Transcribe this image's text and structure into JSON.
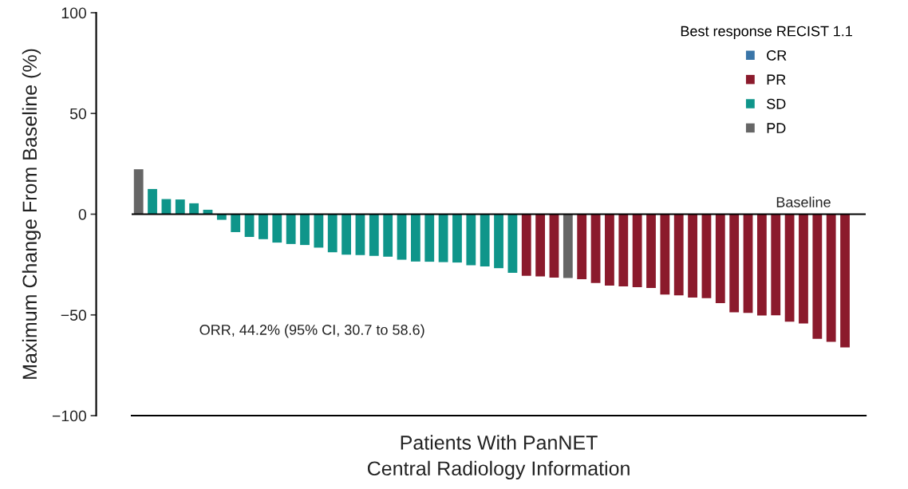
{
  "chart_data": {
    "type": "bar",
    "categories": [
      null,
      null,
      null,
      null,
      null,
      null,
      null,
      null,
      null,
      null,
      null,
      null,
      null,
      null,
      null,
      null,
      null,
      null,
      null,
      null,
      null,
      null,
      null,
      null,
      null,
      null,
      null,
      null,
      null,
      null,
      null,
      null,
      null,
      null,
      null,
      null,
      null,
      null,
      null,
      null,
      null,
      null,
      null,
      null,
      null,
      null,
      null,
      null,
      null,
      null,
      null,
      null,
      null
    ],
    "series": [
      {
        "name": "CR",
        "color": "#3a75a8",
        "values": [
          null,
          null,
          null,
          null,
          null,
          null,
          null,
          null,
          null,
          null,
          null,
          null,
          null,
          null,
          null,
          null,
          null,
          null,
          null,
          null,
          null,
          null,
          null,
          null,
          null,
          null,
          null,
          null,
          null,
          null,
          null,
          null,
          null,
          null,
          null,
          null,
          null,
          null,
          null,
          null,
          null,
          null,
          null,
          null,
          null,
          null,
          null,
          null,
          null,
          null,
          null,
          null,
          null
        ]
      },
      {
        "name": "PR",
        "color": "#8b1a2c",
        "values": [
          null,
          null,
          null,
          null,
          null,
          null,
          null,
          null,
          null,
          null,
          null,
          null,
          null,
          null,
          null,
          null,
          null,
          null,
          null,
          null,
          null,
          null,
          null,
          null,
          null,
          null,
          null,
          null,
          -30.6,
          -30.9,
          -31.5,
          null,
          -32.3,
          -34.2,
          -35.4,
          -35.8,
          -36.2,
          -36.6,
          -39.9,
          -40.3,
          -41.4,
          -41.7,
          -44.2,
          -48.7,
          -49.0,
          -50.3,
          -50.2,
          -53.4,
          -54.2,
          -61.9,
          -63.4,
          -66.1,
          null
        ]
      },
      {
        "name": "SD",
        "color": "#0f958a",
        "values": [
          null,
          12.5,
          7.5,
          7.3,
          5.4,
          2.2,
          -2.8,
          -8.9,
          -11.3,
          -12.4,
          -14.1,
          -14.8,
          -15.3,
          -16.6,
          -18.9,
          -20.1,
          -20.3,
          -20.7,
          -21.1,
          -22.6,
          -23.5,
          -23.6,
          -23.8,
          -24.0,
          -25.3,
          -25.9,
          -26.8,
          -29.1,
          null,
          null,
          null,
          null,
          null,
          null,
          null,
          null,
          null,
          null,
          null,
          null,
          null,
          null,
          null,
          null,
          null,
          null,
          null,
          null,
          null,
          null,
          null,
          null,
          null
        ]
      },
      {
        "name": "PD",
        "color": "#666666",
        "values": [
          22.3,
          null,
          null,
          null,
          null,
          null,
          null,
          null,
          null,
          null,
          null,
          null,
          null,
          null,
          null,
          null,
          null,
          null,
          null,
          null,
          null,
          null,
          null,
          null,
          null,
          null,
          null,
          null,
          null,
          null,
          null,
          -31.7,
          null,
          null,
          null,
          null,
          null,
          null,
          null,
          null,
          null,
          null,
          null,
          null,
          null,
          null,
          null,
          null,
          null,
          null,
          null,
          null,
          null
        ]
      }
    ],
    "ylabel": "Maximum Change From Baseline (%)",
    "xlabel": "Patients With PanNET\nCentral Radiology Information",
    "legend_title": "Best response RECIST 1.1",
    "legend": "top right",
    "ylim": [
      -100,
      100
    ],
    "yticks": [
      -100,
      -50,
      0,
      50,
      100
    ],
    "ref_lines": [
      {
        "axis": "y",
        "value": 0,
        "label": "Baseline",
        "color": "#000000"
      }
    ],
    "annotations": [
      "ORR, 44.2% (95% CI, 30.7 to 58.6)"
    ],
    "grid": false,
    "stacked": true
  }
}
